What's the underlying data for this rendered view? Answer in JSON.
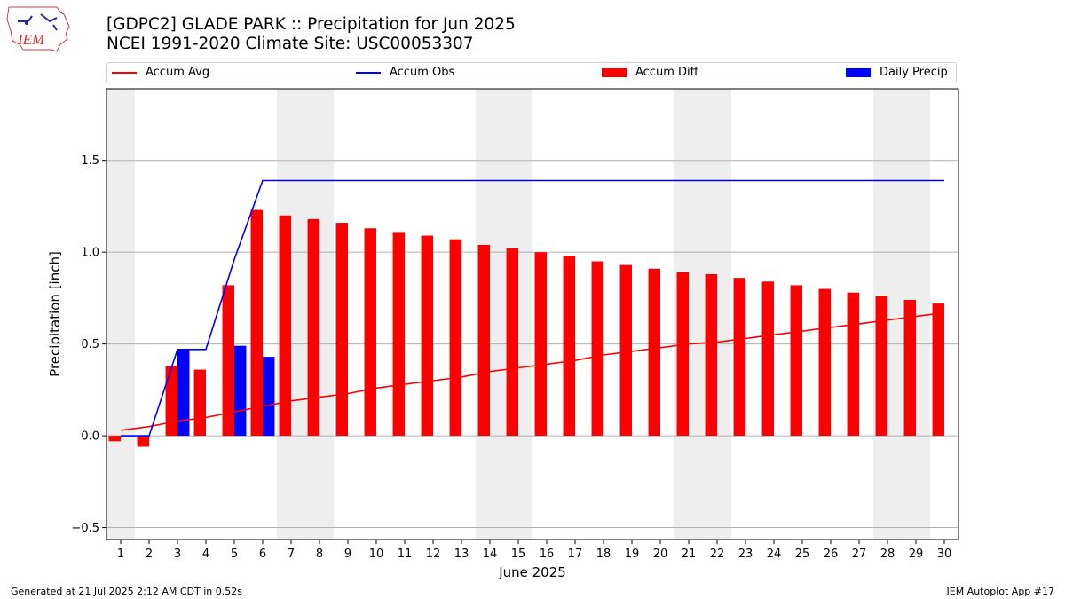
{
  "header": {
    "title_line1": "[GDPC2] GLADE PARK :: Precipitation for Jun 2025",
    "title_line2": "NCEI 1991-2020 Climate Site: USC00053307",
    "logo_text": "IEM"
  },
  "legend": [
    {
      "label": "Accum Avg",
      "kind": "line",
      "color": "#ff0000"
    },
    {
      "label": "Accum Obs",
      "kind": "line",
      "color": "#0000ff"
    },
    {
      "label": "Accum Diff",
      "kind": "bar",
      "color": "#ff0000"
    },
    {
      "label": "Daily Precip",
      "kind": "bar",
      "color": "#0000ff"
    }
  ],
  "footer": {
    "left": "Generated at 21 Jul 2025 2:12 AM CDT in 0.52s",
    "right": "IEM Autoplot App #17"
  },
  "chart_data": {
    "type": "bar",
    "xlabel": "June 2025",
    "ylabel": "Precipitation [inch]",
    "ylim": [
      -0.565,
      1.89
    ],
    "yticks": [
      -0.5,
      0.0,
      0.5,
      1.0,
      1.5
    ],
    "ytick_labels": [
      "−0.5",
      "0.0",
      "0.5",
      "1.0",
      "1.5"
    ],
    "grid": "y",
    "weekend_shading": [
      [
        1,
        1
      ],
      [
        7,
        8
      ],
      [
        14,
        15
      ],
      [
        21,
        22
      ],
      [
        28,
        29
      ]
    ],
    "days": [
      1,
      2,
      3,
      4,
      5,
      6,
      7,
      8,
      9,
      10,
      11,
      12,
      13,
      14,
      15,
      16,
      17,
      18,
      19,
      20,
      21,
      22,
      23,
      24,
      25,
      26,
      27,
      28,
      29,
      30
    ],
    "series": [
      {
        "name": "Accum Avg",
        "kind": "line",
        "color": "#ff0000",
        "values": [
          0.03,
          0.05,
          0.08,
          0.1,
          0.13,
          0.16,
          0.19,
          0.21,
          0.23,
          0.26,
          0.28,
          0.3,
          0.32,
          0.35,
          0.37,
          0.39,
          0.41,
          0.44,
          0.46,
          0.48,
          0.5,
          0.51,
          0.53,
          0.55,
          0.57,
          0.59,
          0.61,
          0.63,
          0.65,
          0.67
        ]
      },
      {
        "name": "Accum Obs",
        "kind": "line",
        "color": "#0000ff",
        "values": [
          0.0,
          0.0,
          0.47,
          0.47,
          0.96,
          1.39,
          1.39,
          1.39,
          1.39,
          1.39,
          1.39,
          1.39,
          1.39,
          1.39,
          1.39,
          1.39,
          1.39,
          1.39,
          1.39,
          1.39,
          1.39,
          1.39,
          1.39,
          1.39,
          1.39,
          1.39,
          1.39,
          1.39,
          1.39,
          1.39
        ]
      },
      {
        "name": "Accum Diff",
        "kind": "bar",
        "color": "#ff0000",
        "values": [
          -0.03,
          -0.06,
          0.38,
          0.36,
          0.82,
          1.23,
          1.2,
          1.18,
          1.16,
          1.13,
          1.11,
          1.09,
          1.07,
          1.04,
          1.02,
          1.0,
          0.98,
          0.95,
          0.93,
          0.91,
          0.89,
          0.88,
          0.86,
          0.84,
          0.82,
          0.8,
          0.78,
          0.76,
          0.74,
          0.72
        ]
      },
      {
        "name": "Daily Precip",
        "kind": "bar",
        "color": "#0000ff",
        "values": [
          0,
          0,
          0.47,
          0,
          0.49,
          0.43,
          0,
          0,
          0,
          0,
          0,
          0,
          0,
          0,
          0,
          0,
          0,
          0,
          0,
          0,
          0,
          0,
          0,
          0,
          0,
          0,
          0,
          0,
          0,
          0
        ]
      }
    ]
  }
}
